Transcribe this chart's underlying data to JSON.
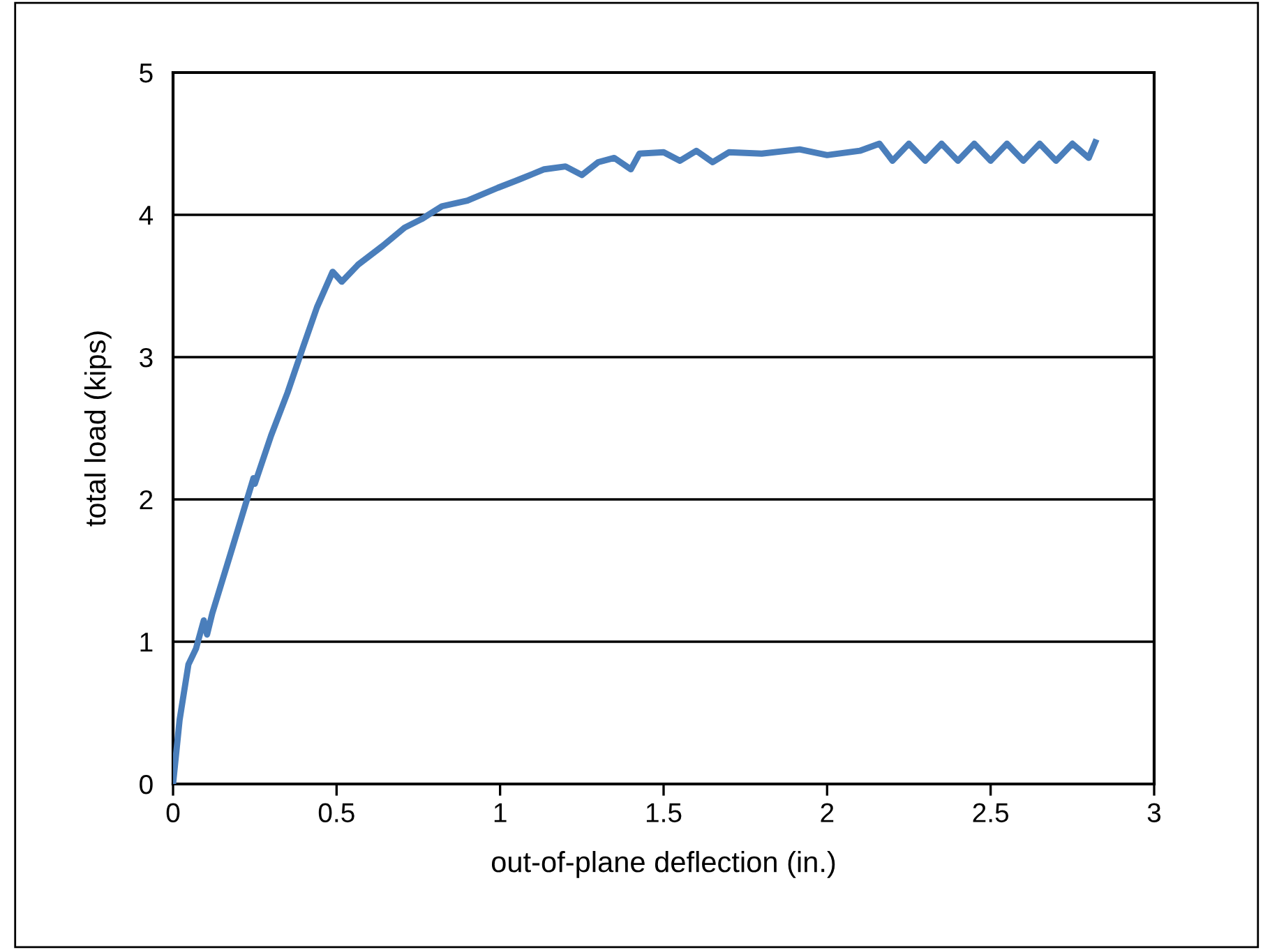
{
  "chart_data": {
    "type": "line",
    "xlabel": "out-of-plane deflection (in.)",
    "ylabel": "total load (kips)",
    "xlim": [
      0,
      3
    ],
    "ylim": [
      0,
      5
    ],
    "xticks": [
      0,
      0.5,
      1,
      1.5,
      2,
      2.5,
      3
    ],
    "yticks": [
      0,
      1,
      2,
      3,
      4,
      5
    ],
    "grid": "y",
    "marker": "none",
    "line_style": "solid",
    "series": [
      {
        "color": "#4a7ebb",
        "x": [
          0,
          0.02,
          0.047,
          0.07,
          0.094,
          0.104,
          0.12,
          0.18,
          0.246,
          0.25,
          0.3,
          0.35,
          0.396,
          0.44,
          0.488,
          0.516,
          0.566,
          0.64,
          0.708,
          0.76,
          0.822,
          0.9,
          0.993,
          1.06,
          1.135,
          1.2,
          1.25,
          1.3,
          1.349,
          1.4,
          1.426,
          1.5,
          1.55,
          1.6,
          1.65,
          1.7,
          1.8,
          1.916,
          2.0,
          2.1,
          2.16,
          2.2,
          2.25,
          2.3,
          2.35,
          2.4,
          2.45,
          2.5,
          2.55,
          2.6,
          2.65,
          2.7,
          2.75,
          2.8,
          2.82
        ],
        "values": [
          0,
          0.45,
          0.84,
          0.95,
          1.15,
          1.05,
          1.2,
          1.65,
          2.15,
          2.11,
          2.45,
          2.75,
          3.06,
          3.35,
          3.6,
          3.53,
          3.65,
          3.78,
          3.91,
          3.97,
          4.06,
          4.1,
          4.19,
          4.25,
          4.32,
          4.34,
          4.28,
          4.37,
          4.4,
          4.32,
          4.43,
          4.44,
          4.38,
          4.45,
          4.37,
          4.44,
          4.43,
          4.46,
          4.42,
          4.45,
          4.5,
          4.38,
          4.5,
          4.38,
          4.5,
          4.38,
          4.5,
          4.38,
          4.5,
          4.38,
          4.5,
          4.38,
          4.5,
          4.4,
          4.51
        ]
      }
    ]
  }
}
